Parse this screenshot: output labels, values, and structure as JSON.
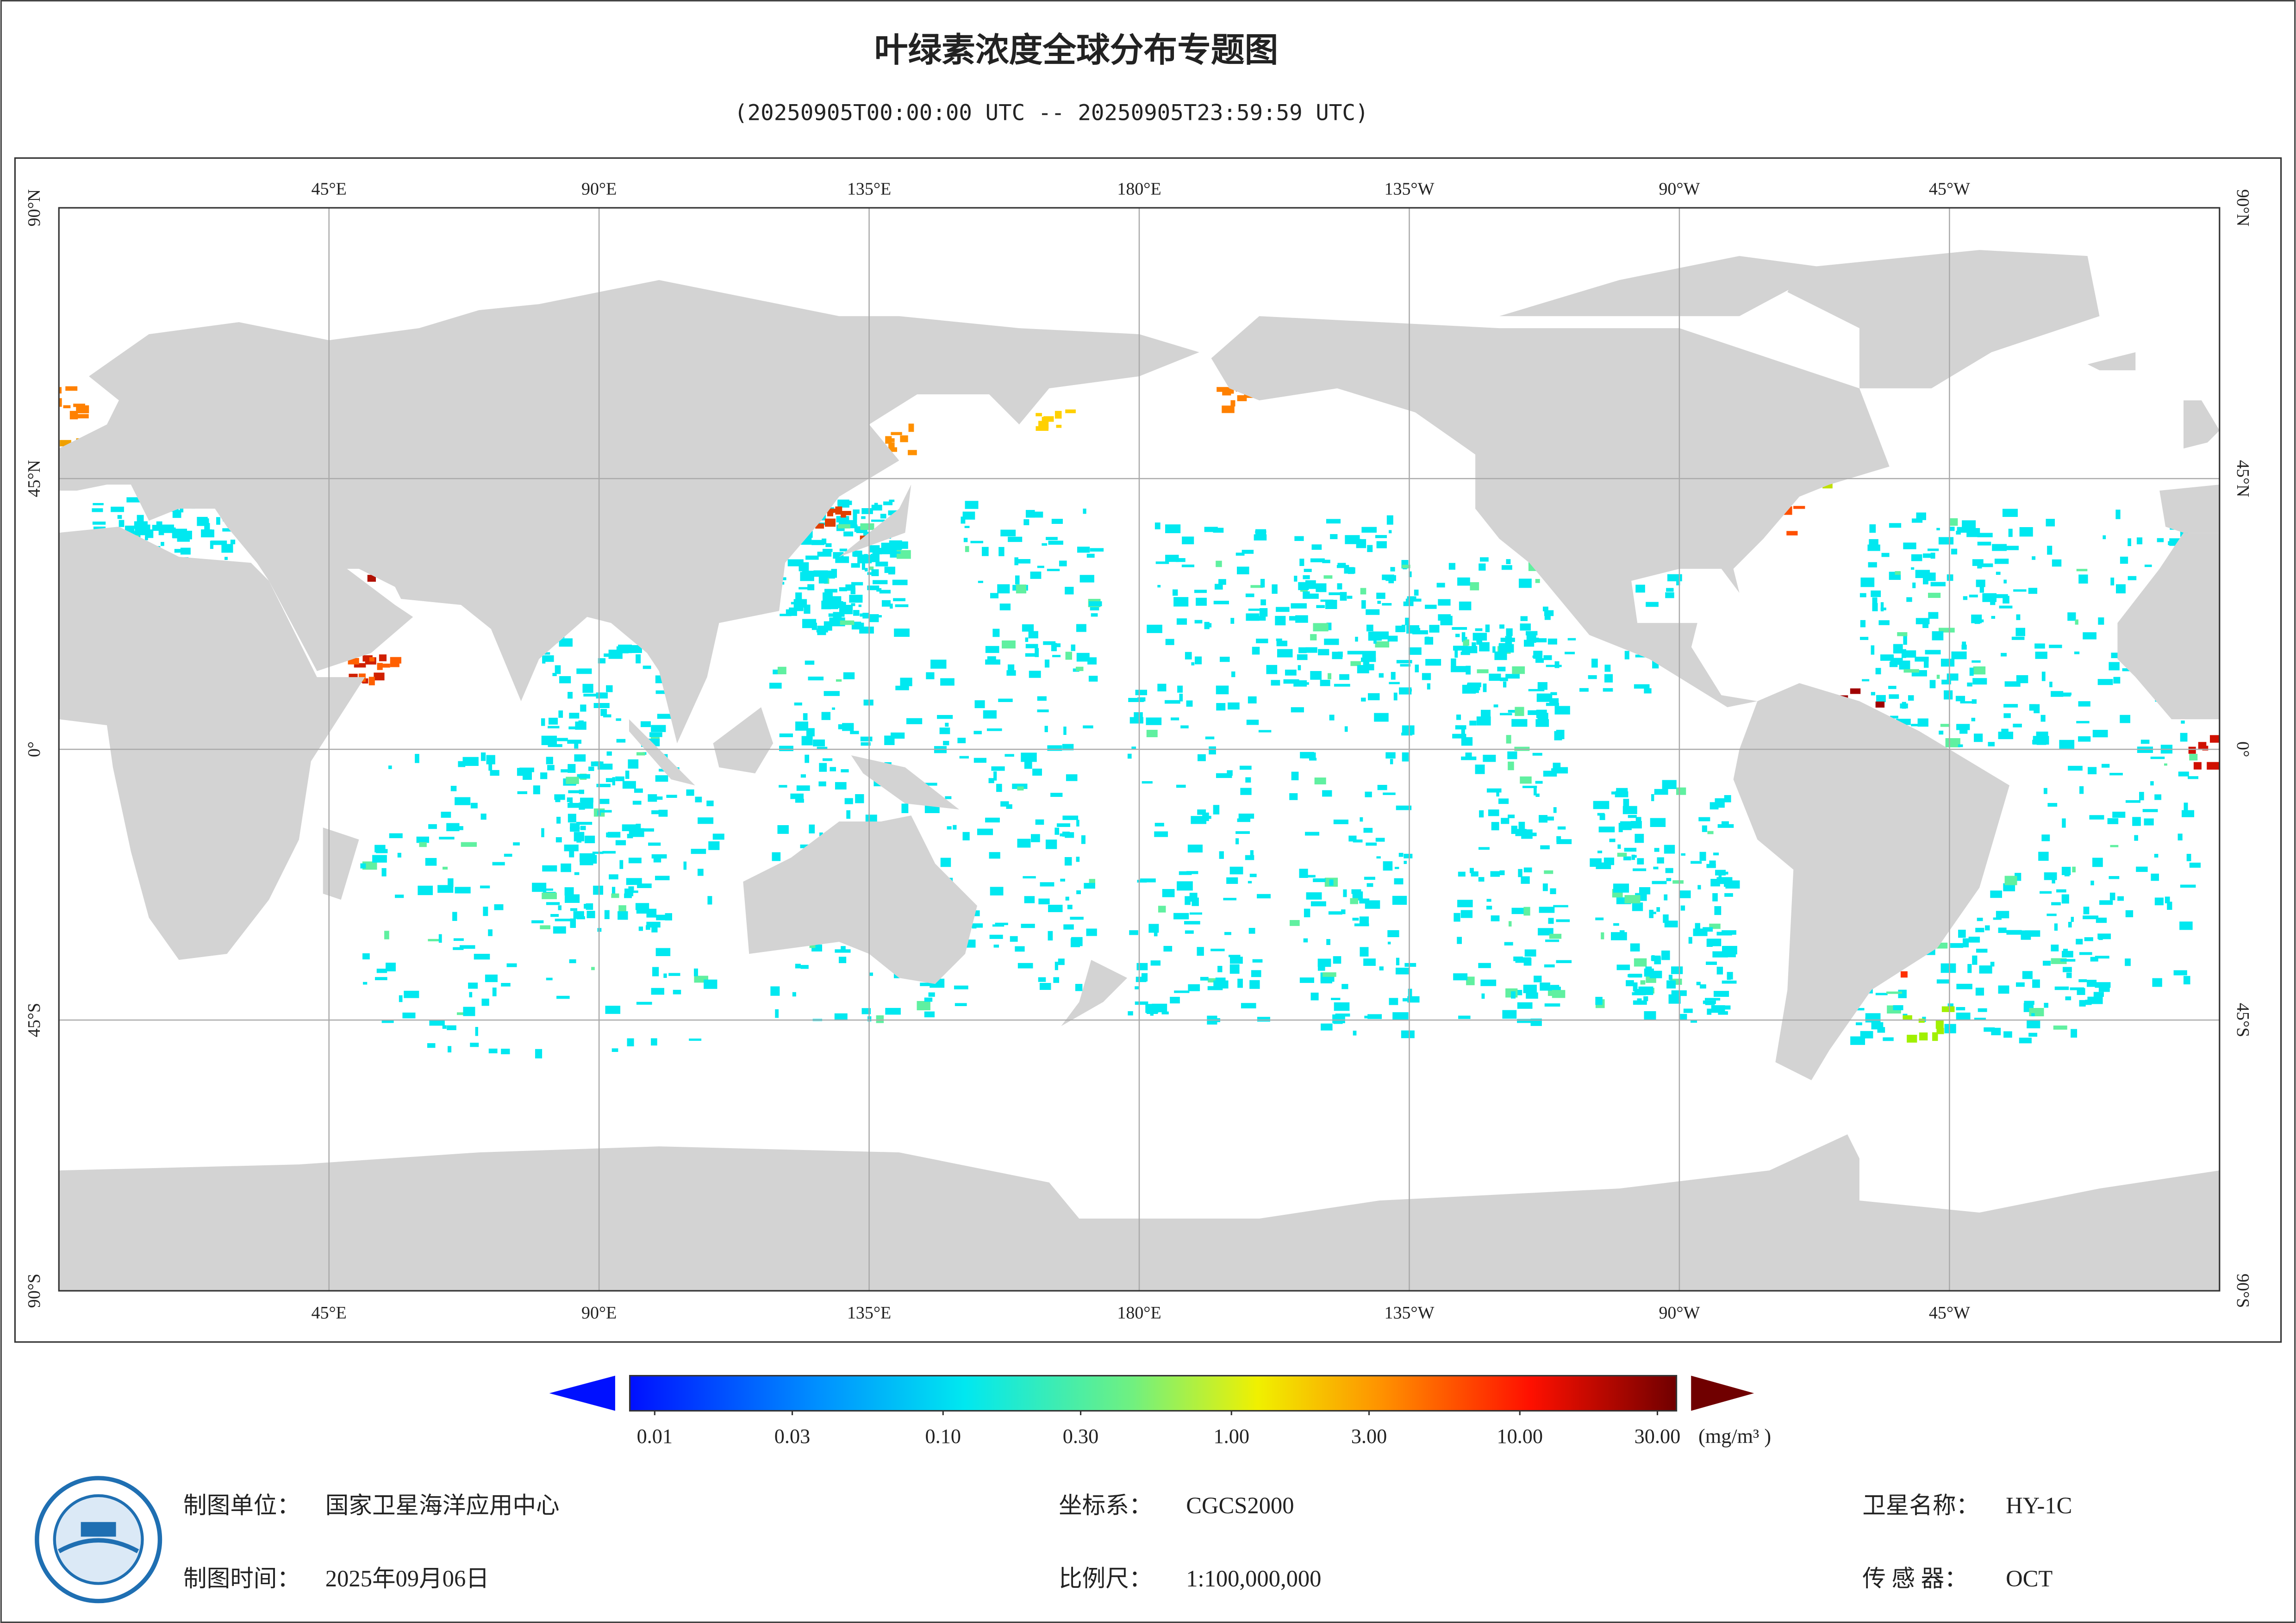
{
  "title": "叶绿素浓度全球分布专题图",
  "subtitle": "(20250905T00:00:00 UTC -- 20250905T23:59:59 UTC)",
  "map": {
    "lon_labels": [
      "45°E",
      "90°E",
      "135°E",
      "180°E",
      "135°W",
      "90°W",
      "45°W"
    ],
    "lat_labels": [
      "90°N",
      "45°N",
      "0°",
      "45°S",
      "90°S"
    ]
  },
  "colorbar": {
    "ticks": [
      {
        "value": 0.01,
        "label": "0.01"
      },
      {
        "value": 0.03,
        "label": "0.03"
      },
      {
        "value": 0.1,
        "label": "0.10"
      },
      {
        "value": 0.3,
        "label": "0.30"
      },
      {
        "value": 1,
        "label": "1.00"
      },
      {
        "value": 3,
        "label": "3.00"
      },
      {
        "value": 10,
        "label": "10.00"
      },
      {
        "value": 30,
        "label": "30.00"
      }
    ],
    "unit": "(mg/m³ )"
  },
  "footer": {
    "unit_label": "制图单位：",
    "unit": "国家卫星海洋应用中心",
    "time_label": "制图时间：",
    "time": "2025年09月06日",
    "crs_label": "坐标系：",
    "crs": "CGCS2000",
    "scale_label": "比例尺：",
    "scale": "1:100,000,000",
    "satellite_label": "卫星名称：",
    "satellite": "HY-1C",
    "sensor_label": "传 感 器：",
    "sensor": "OCT"
  }
}
